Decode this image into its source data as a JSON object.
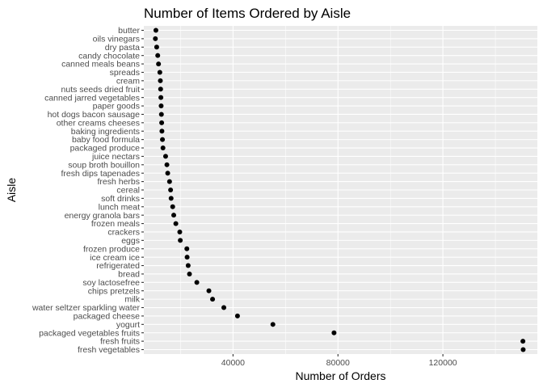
{
  "chart_data": {
    "type": "scatter",
    "title": "Number of Items Ordered by Aisle",
    "xlabel": "Number of Orders",
    "ylabel": "Aisle",
    "xlim": [
      6000,
      156000
    ],
    "xticks": [
      40000,
      80000,
      120000
    ],
    "xtick_labels": [
      "40000",
      "80000",
      "120000"
    ],
    "grid": true,
    "background": "#ebebeb",
    "grid_color": "#ffffff",
    "point_color": "#000000",
    "categories": [
      "butter",
      "oils vinegars",
      "dry pasta",
      "candy chocolate",
      "canned meals beans",
      "spreads",
      "cream",
      "nuts seeds dried fruit",
      "canned jarred vegetables",
      "paper goods",
      "hot dogs bacon sausage",
      "other creams cheeses",
      "baking ingredients",
      "baby food formula",
      "packaged produce",
      "juice nectars",
      "soup broth bouillon",
      "fresh dips tapenades",
      "fresh herbs",
      "cereal",
      "soft drinks",
      "lunch meat",
      "energy granola bars",
      "frozen meals",
      "crackers",
      "eggs",
      "frozen produce",
      "ice cream ice",
      "refrigerated",
      "bread",
      "soy lactosefree",
      "chips pretzels",
      "milk",
      "water seltzer sparkling water",
      "packaged cheese",
      "yogurt",
      "packaged vegetables fruits",
      "fresh fruits",
      "fresh vegetables"
    ],
    "values": [
      10600,
      10400,
      10900,
      11300,
      11600,
      12100,
      12300,
      12400,
      12500,
      12600,
      12700,
      12800,
      12900,
      13100,
      13300,
      14300,
      14800,
      15100,
      15800,
      16200,
      16400,
      17000,
      17400,
      18200,
      19700,
      19900,
      22400,
      22500,
      22900,
      23400,
      26200,
      30800,
      32200,
      36500,
      41700,
      55200,
      78500,
      150500,
      150600
    ]
  }
}
